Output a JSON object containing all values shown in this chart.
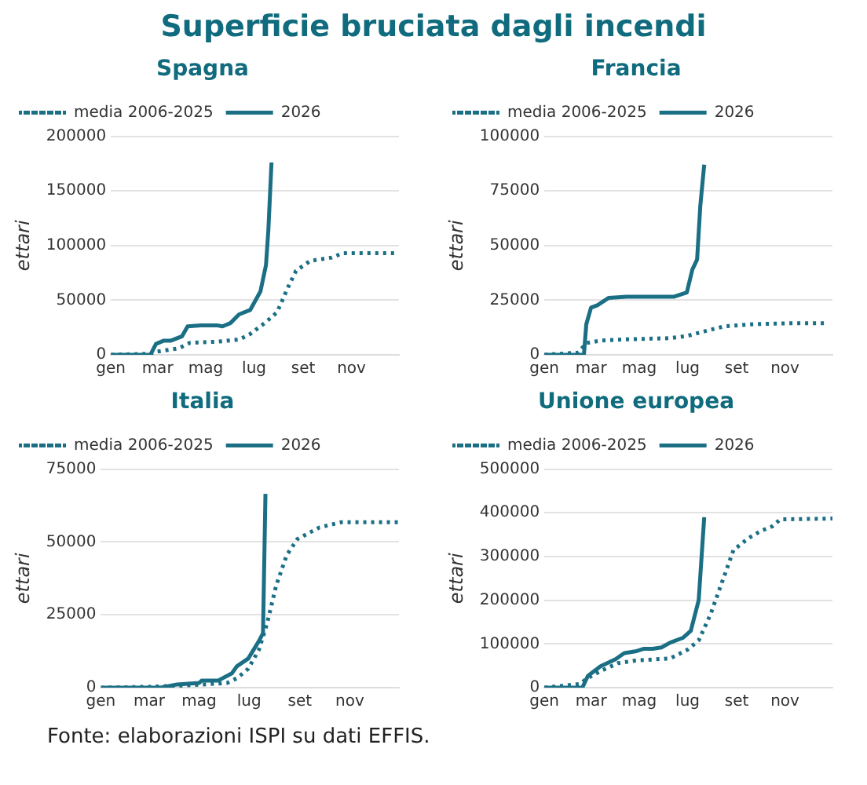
{
  "chart_data": [
    {
      "type": "other",
      "title": "Superficie bruciata dagli incendi",
      "annotations": [
        "Fonte: elaborazioni ISPI su dati EFFIS."
      ]
    },
    {
      "type": "line",
      "title": "Spagna",
      "ylabel": "ettari",
      "xlim": [
        "--01-01",
        "--12-31"
      ],
      "xticks": [
        {
          "value": "--01-01",
          "label": "gen"
        },
        {
          "value": "--03-01",
          "label": "mar"
        },
        {
          "value": "--05-01",
          "label": "mag"
        },
        {
          "value": "--07-01",
          "label": "lug"
        },
        {
          "value": "--09-01",
          "label": "set"
        },
        {
          "value": "--11-01",
          "label": "nov"
        }
      ],
      "ylim": [
        0,
        200000
      ],
      "yticks": [
        0,
        50000,
        100000,
        150000,
        200000
      ],
      "grid": "y",
      "legend": "top left",
      "marker": "none",
      "series": [
        {
          "name": "media 2006-2025",
          "color": "#1b6f85",
          "line_style": "dotted",
          "x": [
            "--01-01",
            "--02-20",
            "--03-01",
            "--03-28",
            "--04-11",
            "--05-15",
            "--06-12",
            "--06-26",
            "--07-16",
            "--07-30",
            "--08-13",
            "--08-23",
            "--09-10",
            "--10-07",
            "--10-21",
            "--12-28"
          ],
          "values": [
            0,
            1000,
            3000,
            6000,
            11000,
            12000,
            14000,
            19000,
            30000,
            39000,
            62000,
            77000,
            86000,
            89000,
            93000,
            93000
          ]
        },
        {
          "name": "2026",
          "color": "#1b6f85",
          "line_style": "solid",
          "x": [
            "--01-01",
            "--02-20",
            "--02-27",
            "--03-09",
            "--03-18",
            "--04-01",
            "--04-08",
            "--04-25",
            "--05-15",
            "--05-22",
            "--06-01",
            "--06-12",
            "--06-26",
            "--07-09",
            "--07-16",
            "--07-19",
            "--07-23"
          ],
          "values": [
            0,
            0,
            10000,
            13000,
            13000,
            17000,
            26000,
            27000,
            27000,
            26000,
            29000,
            37000,
            41000,
            58000,
            82000,
            114000,
            176000
          ]
        }
      ]
    },
    {
      "type": "line",
      "title": "Francia",
      "ylabel": "ettari",
      "xlim": [
        "--01-01",
        "--12-31"
      ],
      "xticks": [
        {
          "value": "--01-01",
          "label": "gen"
        },
        {
          "value": "--03-01",
          "label": "mar"
        },
        {
          "value": "--05-01",
          "label": "mag"
        },
        {
          "value": "--07-01",
          "label": "lug"
        },
        {
          "value": "--09-01",
          "label": "set"
        },
        {
          "value": "--11-01",
          "label": "nov"
        }
      ],
      "ylim": [
        0,
        100000
      ],
      "yticks": [
        0,
        25000,
        50000,
        75000,
        100000
      ],
      "grid": "y",
      "legend": "top left",
      "marker": "none",
      "series": [
        {
          "name": "media 2006-2025",
          "color": "#1b6f85",
          "line_style": "dotted",
          "x": [
            "--01-01",
            "--02-13",
            "--02-23",
            "--03-13",
            "--04-15",
            "--06-07",
            "--06-30",
            "--07-23",
            "--08-16",
            "--09-22",
            "--11-13",
            "--12-25"
          ],
          "values": [
            0,
            1000,
            5400,
            6500,
            7100,
            7600,
            8600,
            10800,
            13000,
            14000,
            14500,
            14500
          ]
        },
        {
          "name": "2026",
          "color": "#1b6f85",
          "line_style": "solid",
          "x": [
            "--01-01",
            "--02-20",
            "--02-23",
            "--03-01",
            "--03-09",
            "--03-23",
            "--04-15",
            "--06-14",
            "--06-30",
            "--07-07",
            "--07-13",
            "--07-17",
            "--07-22"
          ],
          "values": [
            0,
            0,
            14000,
            21600,
            22700,
            26000,
            26600,
            26600,
            28500,
            39000,
            43600,
            68000,
            87000
          ]
        }
      ]
    },
    {
      "type": "line",
      "title": "Italia",
      "ylabel": "ettari",
      "xlim": [
        "--01-01",
        "--12-31"
      ],
      "xticks": [
        {
          "value": "--01-01",
          "label": "gen"
        },
        {
          "value": "--03-01",
          "label": "mar"
        },
        {
          "value": "--05-01",
          "label": "mag"
        },
        {
          "value": "--07-01",
          "label": "lug"
        },
        {
          "value": "--09-01",
          "label": "set"
        },
        {
          "value": "--11-01",
          "label": "nov"
        }
      ],
      "ylim": [
        0,
        75000
      ],
      "yticks": [
        0,
        25000,
        50000,
        75000
      ],
      "grid": "y",
      "legend": "top left",
      "marker": "none",
      "series": [
        {
          "name": "media 2006-2025",
          "color": "#1b6f85",
          "line_style": "dotted",
          "x": [
            "--01-01",
            "--03-01",
            "--04-17",
            "--06-04",
            "--06-16",
            "--06-30",
            "--07-13",
            "--07-23",
            "--08-03",
            "--08-16",
            "--08-29",
            "--09-25",
            "--10-22",
            "--12-31"
          ],
          "values": [
            0,
            300,
            800,
            1600,
            3200,
            6500,
            13000,
            22000,
            35000,
            45500,
            51000,
            55000,
            56800,
            56800
          ]
        },
        {
          "name": "2026",
          "color": "#1b6f85",
          "line_style": "solid",
          "x": [
            "--01-01",
            "--03-15",
            "--04-04",
            "--05-01",
            "--05-04",
            "--05-24",
            "--06-10",
            "--06-16",
            "--06-30",
            "--07-13",
            "--07-18",
            "--07-21"
          ],
          "values": [
            0,
            0,
            1100,
            1600,
            2400,
            2400,
            4900,
            7300,
            10000,
            16000,
            18700,
            66500
          ]
        }
      ]
    },
    {
      "type": "line",
      "title": "Unione europea",
      "ylabel": "ettari",
      "xlim": [
        "--01-01",
        "--12-31"
      ],
      "xticks": [
        {
          "value": "--01-01",
          "label": "gen"
        },
        {
          "value": "--03-01",
          "label": "mar"
        },
        {
          "value": "--05-01",
          "label": "mag"
        },
        {
          "value": "--07-01",
          "label": "lug"
        },
        {
          "value": "--09-01",
          "label": "set"
        },
        {
          "value": "--11-01",
          "label": "nov"
        }
      ],
      "ylim": [
        0,
        500000
      ],
      "yticks": [
        0,
        100000,
        200000,
        300000,
        400000,
        500000
      ],
      "grid": "y",
      "legend": "top left",
      "marker": "none",
      "series": [
        {
          "name": "media 2006-2025",
          "color": "#1b6f85",
          "line_style": "dotted",
          "x": [
            "--01-01",
            "--02-14",
            "--02-25",
            "--03-13",
            "--04-04",
            "--04-26",
            "--06-09",
            "--07-01",
            "--07-15",
            "--07-30",
            "--08-14",
            "--08-28",
            "--09-16",
            "--10-01",
            "--10-16",
            "--10-26",
            "--12-31"
          ],
          "values": [
            0,
            8000,
            22000,
            38000,
            56000,
            62000,
            67000,
            87000,
            108000,
            168000,
            244000,
            315000,
            342000,
            358000,
            369000,
            385000,
            387000
          ]
        },
        {
          "name": "2026",
          "color": "#1b6f85",
          "line_style": "solid",
          "x": [
            "--01-01",
            "--02-18",
            "--02-25",
            "--03-13",
            "--04-01",
            "--04-12",
            "--04-26",
            "--05-07",
            "--05-18",
            "--05-29",
            "--06-09",
            "--06-25",
            "--07-05",
            "--07-15",
            "--07-22"
          ],
          "values": [
            0,
            0,
            27000,
            49000,
            65000,
            79000,
            83000,
            89000,
            89000,
            92000,
            103000,
            114000,
            130000,
            200000,
            390000
          ]
        }
      ]
    }
  ]
}
